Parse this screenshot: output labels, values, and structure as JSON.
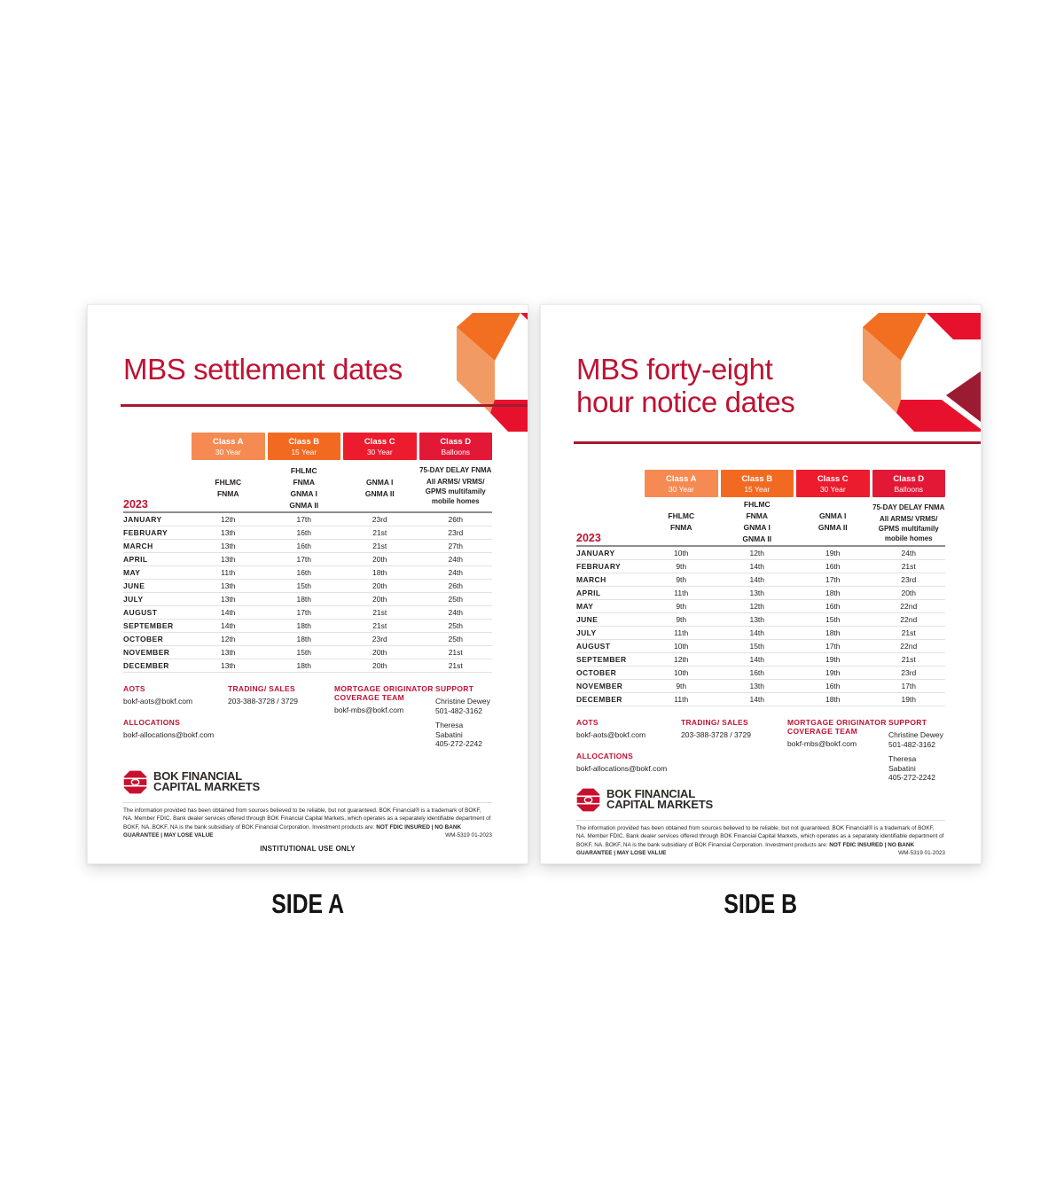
{
  "colors": {
    "class_a": "#F58B53",
    "class_b": "#F26A21",
    "class_c": "#EC1B2D",
    "class_d": "#E31837",
    "accent_crimson": "#BE1333",
    "rule": "#A6192E",
    "logo_red": "#C8102E"
  },
  "classes": [
    {
      "name": "Class A",
      "term": "30 Year",
      "agencies": [
        "FHLMC",
        "FNMA"
      ]
    },
    {
      "name": "Class B",
      "term": "15 Year",
      "agencies": [
        "FHLMC",
        "FNMA",
        "GNMA I",
        "GNMA II"
      ]
    },
    {
      "name": "Class C",
      "term": "30 Year",
      "agencies": [
        "GNMA I",
        "GNMA II"
      ]
    },
    {
      "name": "Class D",
      "term": "Balloons",
      "agencies": [
        "75-DAY DELAY FNMA",
        "All ARMS/ VRMS/ GPMS multifamily mobile homes"
      ]
    }
  ],
  "side_a": {
    "label": "SIDE A",
    "title": "MBS settlement dates",
    "year": "2023",
    "rows": [
      [
        "JANUARY",
        "12th",
        "17th",
        "23rd",
        "26th"
      ],
      [
        "FEBRUARY",
        "13th",
        "16th",
        "21st",
        "23rd"
      ],
      [
        "MARCH",
        "13th",
        "16th",
        "21st",
        "27th"
      ],
      [
        "APRIL",
        "13th",
        "17th",
        "20th",
        "24th"
      ],
      [
        "MAY",
        "11th",
        "16th",
        "18th",
        "24th"
      ],
      [
        "JUNE",
        "13th",
        "15th",
        "20th",
        "26th"
      ],
      [
        "JULY",
        "13th",
        "18th",
        "20th",
        "25th"
      ],
      [
        "AUGUST",
        "14th",
        "17th",
        "21st",
        "24th"
      ],
      [
        "SEPTEMBER",
        "14th",
        "18th",
        "21st",
        "25th"
      ],
      [
        "OCTOBER",
        "12th",
        "18th",
        "23rd",
        "25th"
      ],
      [
        "NOVEMBER",
        "13th",
        "15th",
        "20th",
        "21st"
      ],
      [
        "DECEMBER",
        "13th",
        "18th",
        "20th",
        "21st"
      ]
    ]
  },
  "side_b": {
    "label": "SIDE B",
    "title": "MBS forty-eight\nhour notice dates",
    "year": "2023",
    "rows": [
      [
        "JANUARY",
        "10th",
        "12th",
        "19th",
        "24th"
      ],
      [
        "FEBRUARY",
        "9th",
        "14th",
        "16th",
        "21st"
      ],
      [
        "MARCH",
        "9th",
        "14th",
        "17th",
        "23rd"
      ],
      [
        "APRIL",
        "11th",
        "13th",
        "18th",
        "20th"
      ],
      [
        "MAY",
        "9th",
        "12th",
        "16th",
        "22nd"
      ],
      [
        "JUNE",
        "9th",
        "13th",
        "15th",
        "22nd"
      ],
      [
        "JULY",
        "11th",
        "14th",
        "18th",
        "21st"
      ],
      [
        "AUGUST",
        "10th",
        "15th",
        "17th",
        "22nd"
      ],
      [
        "SEPTEMBER",
        "12th",
        "14th",
        "19th",
        "21st"
      ],
      [
        "OCTOBER",
        "10th",
        "16th",
        "19th",
        "23rd"
      ],
      [
        "NOVEMBER",
        "9th",
        "13th",
        "16th",
        "17th"
      ],
      [
        "DECEMBER",
        "11th",
        "14th",
        "18th",
        "19th"
      ]
    ]
  },
  "contacts": {
    "aots": {
      "heading": "AOTS",
      "value": "bokf-aots@bokf.com"
    },
    "allocations": {
      "heading": "ALLOCATIONS",
      "value": "bokf-allocations@bokf.com"
    },
    "trading": {
      "heading": "TRADING/ SALES",
      "value": "203-388-3728 / 3729"
    },
    "mortgage": {
      "heading": "MORTGAGE ORIGINATOR COVERAGE TEAM",
      "value": "bokf-mbs@bokf.com"
    },
    "support": {
      "heading": "SUPPORT",
      "people": [
        {
          "name": "Christine Dewey",
          "phone": "501-482-3162"
        },
        {
          "name": "Theresa Sabatini",
          "phone": "405-272-2242"
        }
      ]
    }
  },
  "logo": {
    "line1": "BOK FINANCIAL",
    "line2": "CAPITAL MARKETS"
  },
  "disclaimer": {
    "text": "The information provided has been obtained from sources believed to be reliable, but not guaranteed. BOK Financial® is a trademark of BOKF, NA. Member FDIC. Bank dealer services offered through BOK Financial Capital Markets, which operates as a separately identifiable department of BOKF, NA. BOKF, NA is the bank subsidiary of BOK Financial Corporation. Investment products are: ",
    "bold": "NOT FDIC INSURED | NO BANK GUARANTEE | MAY LOSE VALUE",
    "code": "WM-5319 01-2023",
    "institutional": "INSTITUTIONAL USE ONLY"
  }
}
